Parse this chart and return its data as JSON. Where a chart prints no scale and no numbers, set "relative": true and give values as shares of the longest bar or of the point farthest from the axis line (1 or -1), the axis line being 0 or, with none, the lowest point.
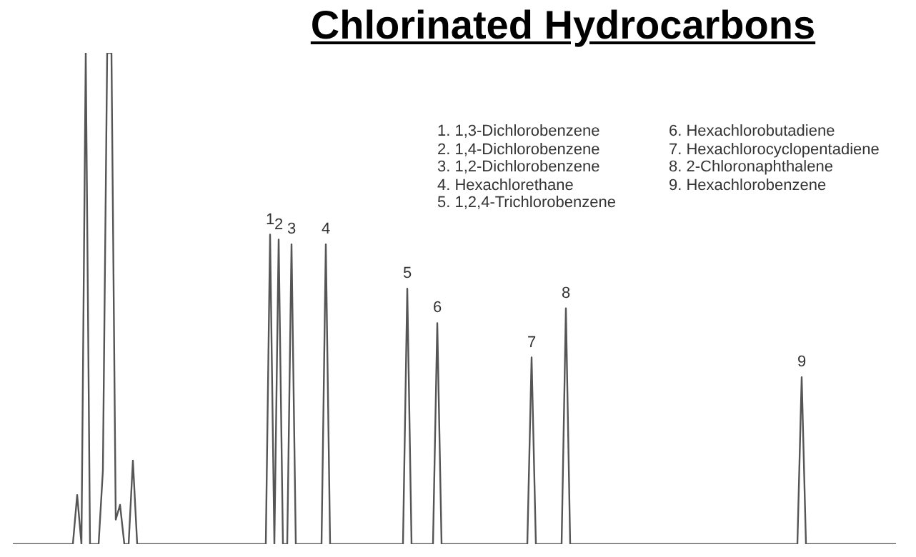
{
  "chart_data": {
    "type": "line",
    "title": "Chlorinated Hydrocarbons",
    "relative": true,
    "legend": false,
    "marker": "none",
    "line_style": "solid",
    "categories": [
      null,
      null,
      null,
      null,
      null,
      null,
      null,
      null,
      null,
      null,
      null,
      null,
      null,
      null,
      null,
      null,
      null,
      null,
      null,
      null,
      null,
      null,
      null,
      null,
      null,
      null,
      null,
      null,
      null,
      null,
      null,
      null,
      null,
      null,
      null,
      null,
      null,
      null,
      null,
      null,
      null,
      null,
      null,
      null,
      null,
      null,
      null,
      null,
      null,
      null,
      null,
      null,
      null,
      null,
      null,
      null,
      null,
      null,
      null,
      null,
      "1",
      null,
      "2",
      null,
      null,
      "3",
      null,
      null,
      null,
      null,
      null,
      null,
      null,
      "4",
      null,
      null,
      null,
      null,
      null,
      null,
      null,
      null,
      null,
      null,
      null,
      null,
      null,
      null,
      null,
      null,
      null,
      null,
      "5",
      null,
      null,
      null,
      null,
      null,
      null,
      "6",
      null,
      null,
      null,
      null,
      null,
      null,
      null,
      null,
      null,
      null,
      null,
      null,
      null,
      null,
      null,
      null,
      null,
      null,
      null,
      null,
      null,
      "7",
      null,
      null,
      null,
      null,
      null,
      null,
      null,
      "8",
      null,
      null,
      null,
      null,
      null,
      null,
      null,
      null,
      null,
      null,
      null,
      null,
      null,
      null,
      null,
      null,
      null,
      null,
      null,
      null,
      null,
      null,
      null,
      null,
      null,
      null,
      null,
      null,
      null,
      null,
      null,
      null,
      null,
      null,
      null,
      null,
      null,
      null,
      null,
      null,
      null,
      null,
      null,
      null,
      null,
      null,
      null,
      null,
      null,
      null,
      null,
      null,
      null,
      null,
      "9",
      null,
      null,
      null,
      null,
      null,
      null,
      null,
      null,
      null,
      null,
      null,
      null,
      null,
      null,
      null,
      null,
      null,
      null,
      null,
      null,
      null,
      null
    ],
    "series": [
      {
        "color": "#555555",
        "values": [
          0,
          0,
          0,
          0,
          0,
          0,
          0,
          0,
          0,
          0,
          0,
          0,
          0,
          0,
          0,
          0.1,
          0,
          1,
          0,
          0,
          0,
          0.15,
          1,
          1,
          0.05,
          0.08,
          0,
          0,
          0.17,
          0,
          0,
          0,
          0,
          0,
          0,
          0,
          0,
          0,
          0,
          0,
          0,
          0,
          0,
          0,
          0,
          0,
          0,
          0,
          0,
          0,
          0,
          0,
          0,
          0,
          0,
          0,
          0,
          0,
          0,
          0,
          0.63,
          0,
          0.62,
          0,
          0,
          0.61,
          0,
          0,
          0,
          0,
          0,
          0,
          0,
          0.61,
          0,
          0,
          0,
          0,
          0,
          0,
          0,
          0,
          0,
          0,
          0,
          0,
          0,
          0,
          0,
          0,
          0,
          0,
          0.52,
          0,
          0,
          0,
          0,
          0,
          0,
          0.45,
          0,
          0,
          0,
          0,
          0,
          0,
          0,
          0,
          0,
          0,
          0,
          0,
          0,
          0,
          0,
          0,
          0,
          0,
          0,
          0,
          0,
          0.38,
          0,
          0,
          0,
          0,
          0,
          0,
          0,
          0.48,
          0,
          0,
          0,
          0,
          0,
          0,
          0,
          0,
          0,
          0,
          0,
          0,
          0,
          0,
          0,
          0,
          0,
          0,
          0,
          0,
          0,
          0,
          0,
          0,
          0,
          0,
          0,
          0,
          0,
          0,
          0,
          0,
          0,
          0,
          0,
          0,
          0,
          0,
          0,
          0,
          0,
          0,
          0,
          0,
          0,
          0,
          0,
          0,
          0,
          0,
          0,
          0,
          0,
          0,
          0.34,
          0,
          0,
          0,
          0,
          0,
          0,
          0,
          0,
          0,
          0,
          0,
          0,
          0,
          0,
          0,
          0,
          0,
          0,
          0,
          0,
          0,
          0
        ]
      }
    ],
    "annotations": [
      "1. 1,3-Dichlorobenzene",
      "2. 1,4-Dichlorobenzene",
      "3. 1,2-Dichlorobenzene",
      "4. Hexachlorethane",
      "5. 1,2,4-Trichlorobenzene",
      "6. Hexachlorobutadiene",
      "7. Hexachlorocyclopentadiene",
      "8. 2-Chloronaphthalene",
      "9. Hexachlorobenzene"
    ]
  }
}
